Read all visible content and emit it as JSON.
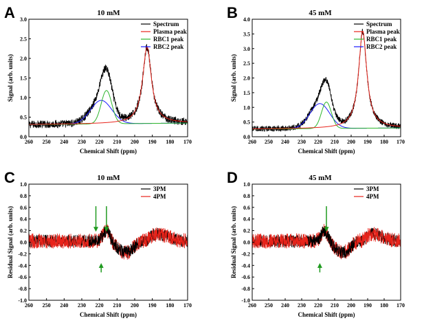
{
  "figure": {
    "panels": [
      "A",
      "B",
      "C",
      "D"
    ]
  },
  "colors": {
    "spectrum": "#000000",
    "plasma": "#e8231a",
    "rbc1": "#2bb52b",
    "rbc2": "#1a1aff",
    "pm3": "#000000",
    "pm4": "#e8231a",
    "arrow": "#1f9a1f"
  },
  "chart_data": [
    {
      "id": "A",
      "type": "line",
      "title": "10 mM",
      "xlabel": "Chemical Shift (ppm)",
      "ylabel": "Signal (arb. units)",
      "xlim": [
        260,
        170
      ],
      "ylim": [
        0.0,
        3.0
      ],
      "xticks": [
        260,
        250,
        240,
        230,
        220,
        210,
        200,
        190,
        180,
        170
      ],
      "yticks": [
        0.0,
        0.5,
        1.0,
        1.5,
        2.0,
        2.5,
        3.0
      ],
      "ytick_labels": [
        "0.0",
        "0.5",
        "1.0",
        "1.5",
        "2.0",
        "2.5",
        "3.0"
      ],
      "baseline": 0.35,
      "noise": 0.05,
      "legend": [
        "Spectrum",
        "Plasma peak",
        "RBC1 peak",
        "RBC2 peak"
      ],
      "peaks": {
        "plasma": {
          "center": 193,
          "height": 1.95,
          "width": 3.0
        },
        "rbc1": {
          "center": 216,
          "height": 0.85,
          "width": 3.0
        },
        "rbc2": {
          "center": 219,
          "height": 0.6,
          "width": 6.0
        }
      }
    },
    {
      "id": "B",
      "type": "line",
      "title": "45 mM",
      "xlabel": "Chemical Shift (ppm)",
      "ylabel": "Signal (arb. units)",
      "xlim": [
        260,
        170
      ],
      "ylim": [
        0.0,
        4.0
      ],
      "xticks": [
        260,
        250,
        240,
        230,
        220,
        210,
        200,
        190,
        180,
        170
      ],
      "yticks": [
        0.0,
        0.5,
        1.0,
        1.5,
        2.0,
        2.5,
        3.0,
        3.5,
        4.0
      ],
      "ytick_labels": [
        "0.0",
        "0.5",
        "1.0",
        "1.5",
        "2.0",
        "2.5",
        "3.0",
        "3.5",
        "4.0"
      ],
      "baseline": 0.3,
      "noise": 0.05,
      "legend": [
        "Spectrum",
        "Plasma peak",
        "RBC1 peak",
        "RBC2 peak"
      ],
      "peaks": {
        "plasma": {
          "center": 193,
          "height": 3.3,
          "width": 3.0
        },
        "rbc1": {
          "center": 215,
          "height": 0.9,
          "width": 3.0
        },
        "rbc2": {
          "center": 219,
          "height": 0.85,
          "width": 6.0
        }
      }
    },
    {
      "id": "C",
      "type": "line",
      "title": "10 mM",
      "xlabel": "Chemical Shift (ppm)",
      "ylabel": "Residual Signal (arb. units)",
      "xlim": [
        260,
        170
      ],
      "ylim": [
        -1.0,
        1.0
      ],
      "xticks": [
        260,
        250,
        240,
        230,
        220,
        210,
        200,
        190,
        180,
        170
      ],
      "yticks": [
        -1.0,
        -0.8,
        -0.6,
        -0.4,
        -0.2,
        0.0,
        0.2,
        0.4,
        0.6,
        0.8,
        1.0
      ],
      "ytick_labels": [
        "-1.0",
        "-0.8",
        "-0.6",
        "-0.4",
        "-0.2",
        "0.0",
        "0.2",
        "0.4",
        "0.6",
        "0.8",
        "1.0"
      ],
      "legend": [
        "3PM",
        "4PM"
      ],
      "arrows_down": [
        222,
        216
      ],
      "arrows_up": [
        219
      ]
    },
    {
      "id": "D",
      "type": "line",
      "title": "45 mM",
      "xlabel": "Chemical Shift (ppm)",
      "ylabel": "Residual Signal (arb. units)",
      "xlim": [
        260,
        170
      ],
      "ylim": [
        -1.0,
        1.0
      ],
      "xticks": [
        260,
        250,
        240,
        230,
        220,
        210,
        200,
        190,
        180,
        170
      ],
      "yticks": [
        -1.0,
        -0.8,
        -0.6,
        -0.4,
        -0.2,
        0.0,
        0.2,
        0.4,
        0.6,
        0.8,
        1.0
      ],
      "ytick_labels": [
        "-1.0",
        "-0.8",
        "-0.6",
        "-0.4",
        "-0.2",
        "0.0",
        "0.2",
        "0.4",
        "0.6",
        "0.8",
        "1.0"
      ],
      "legend": [
        "3PM",
        "4PM"
      ],
      "arrows_down": [
        215
      ],
      "arrows_up": [
        219
      ]
    }
  ]
}
